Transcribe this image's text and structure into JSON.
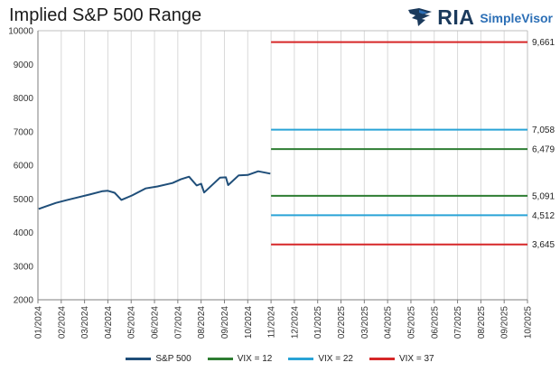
{
  "title": "Implied S&P 500 Range",
  "brand": {
    "name": "RIA",
    "product": "SimpleVisor"
  },
  "chart_data": {
    "type": "line",
    "title": "Implied S&P 500 Range",
    "xlabel": "",
    "ylabel": "",
    "ylim": [
      2000,
      10000
    ],
    "y_ticks": [
      2000,
      3000,
      4000,
      5000,
      6000,
      7000,
      8000,
      9000,
      10000
    ],
    "x_ticks": [
      "01/2024",
      "02/2024",
      "03/2024",
      "04/2024",
      "05/2024",
      "06/2024",
      "07/2024",
      "08/2024",
      "09/2024",
      "10/2024",
      "11/2024",
      "12/2024",
      "01/2025",
      "02/2025",
      "03/2025",
      "04/2025",
      "05/2025",
      "06/2025",
      "07/2025",
      "08/2025",
      "09/2025",
      "10/2025"
    ],
    "grid": "vertical",
    "legend_position": "bottom",
    "colors": {
      "sp500": "#1f4e79",
      "vix12": "#2e7d32",
      "vix22": "#29a3d6",
      "vix37": "#d62728"
    },
    "series": [
      {
        "name": "S&P 500",
        "x": [
          "01/2024",
          "01/2024",
          "01/2024",
          "02/2024",
          "02/2024",
          "03/2024",
          "03/2024",
          "04/2024",
          "04/2024",
          "04/2024",
          "05/2024",
          "05/2024",
          "06/2024",
          "06/2024",
          "07/2024",
          "07/2024",
          "07/2024",
          "08/2024",
          "08/2024",
          "08/2024",
          "09/2024",
          "09/2024",
          "09/2024",
          "10/2024",
          "10/2024",
          "10/2024"
        ],
        "day": [
          2,
          12,
          25,
          8,
          22,
          8,
          25,
          1,
          10,
          19,
          2,
          20,
          5,
          25,
          5,
          16,
          26,
          1,
          5,
          26,
          3,
          6,
          20,
          1,
          15,
          31
        ],
        "values": [
          4700,
          4780,
          4880,
          4960,
          5040,
          5130,
          5230,
          5240,
          5180,
          4970,
          5100,
          5310,
          5370,
          5470,
          5580,
          5660,
          5400,
          5450,
          5190,
          5630,
          5640,
          5410,
          5700,
          5710,
          5820,
          5750
        ]
      }
    ],
    "levels": [
      {
        "series": "VIX = 37",
        "values": [
          3645,
          9661
        ],
        "labels": [
          "3,645",
          "9,661"
        ],
        "color": "#d62728"
      },
      {
        "series": "VIX = 22",
        "values": [
          4512,
          7058
        ],
        "labels": [
          "4,512",
          "7,058"
        ],
        "color": "#29a3d6"
      },
      {
        "series": "VIX = 12",
        "values": [
          5091,
          6479
        ],
        "labels": [
          "5,091",
          "6,479"
        ],
        "color": "#2e7d32"
      }
    ],
    "level_range": [
      "11/2024",
      "10/2025"
    ]
  },
  "legend": [
    {
      "label": "S&P 500",
      "color": "#1f4e79"
    },
    {
      "label": "VIX = 12",
      "color": "#2e7d32"
    },
    {
      "label": "VIX = 22",
      "color": "#29a3d6"
    },
    {
      "label": "VIX = 37",
      "color": "#d62728"
    }
  ]
}
